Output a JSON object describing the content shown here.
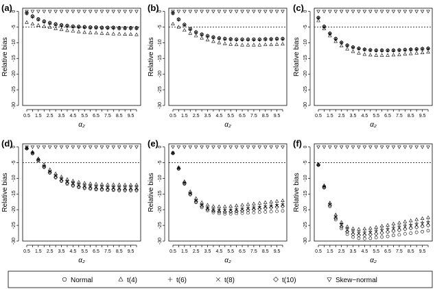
{
  "chart_data": {
    "type": "scatter",
    "ylabel": "Relative bias",
    "xlabel": "α₂",
    "x_ticks": [
      "0.5",
      "1.5",
      "2.5",
      "3.5",
      "4.5",
      "5.5",
      "6.5",
      "7.5",
      "8.5",
      "9.5"
    ],
    "y_ticks": [
      "0",
      "-5",
      "-10",
      "-15",
      "-20",
      "-25",
      "-30"
    ],
    "ylim": [
      -30,
      1
    ],
    "xlim": [
      0.5,
      10
    ],
    "reference_line": -5,
    "grid": false,
    "legend": {
      "placement": "bottom",
      "items": [
        {
          "symbol": "circle",
          "label": "Normal"
        },
        {
          "symbol": "triangle-up",
          "label": "t(4)"
        },
        {
          "symbol": "plus",
          "label": "t(6)"
        },
        {
          "symbol": "cross",
          "label": "t(8)"
        },
        {
          "symbol": "diamond",
          "label": "t(10)"
        },
        {
          "symbol": "triangle-down",
          "label": "Skew−normal"
        }
      ]
    },
    "x": [
      0.5,
      1,
      1.5,
      2,
      2.5,
      3,
      3.5,
      4,
      4.5,
      5,
      5.5,
      6,
      6.5,
      7,
      7.5,
      8,
      8.5,
      9,
      9.5,
      10
    ],
    "panels": [
      {
        "tag": "(a)",
        "series": [
          {
            "symbol": "circle",
            "values": [
              -0.5,
              -1.5,
              -2.4,
              -3.1,
              -3.6,
              -4.0,
              -4.3,
              -4.5,
              -4.7,
              -4.8,
              -4.9,
              -5.0,
              -5.0,
              -5.1,
              -5.1,
              -5.1,
              -5.2,
              -5.2,
              -5.2,
              -5.2
            ]
          },
          {
            "symbol": "triangle-up",
            "values": [
              -3.5,
              -4.0,
              -4.4,
              -4.8,
              -5.1,
              -5.5,
              -5.8,
              -6.1,
              -6.3,
              -6.5,
              -6.7,
              -6.8,
              -6.9,
              -7.0,
              -7.1,
              -7.2,
              -7.2,
              -7.3,
              -7.3,
              -7.4
            ]
          },
          {
            "symbol": "plus",
            "values": [
              -0.8,
              -1.9,
              -2.8,
              -3.5,
              -4.0,
              -4.4,
              -4.7,
              -4.9,
              -5.1,
              -5.2,
              -5.3,
              -5.4,
              -5.4,
              -5.5,
              -5.5,
              -5.5,
              -5.6,
              -5.6,
              -5.6,
              -5.6
            ]
          },
          {
            "symbol": "cross",
            "values": [
              -0.6,
              -1.7,
              -2.6,
              -3.3,
              -3.8,
              -4.2,
              -4.5,
              -4.7,
              -4.9,
              -5.0,
              -5.1,
              -5.2,
              -5.2,
              -5.3,
              -5.3,
              -5.3,
              -5.4,
              -5.4,
              -5.4,
              -5.4
            ]
          },
          {
            "symbol": "diamond",
            "values": [
              -0.5,
              -1.6,
              -2.5,
              -3.2,
              -3.7,
              -4.1,
              -4.4,
              -4.6,
              -4.8,
              -4.9,
              -5.0,
              -5.1,
              -5.1,
              -5.2,
              -5.2,
              -5.2,
              -5.3,
              -5.3,
              -5.3,
              -5.3
            ]
          },
          {
            "symbol": "triangle-down",
            "values": [
              0,
              0,
              0,
              0,
              0,
              0,
              0,
              0,
              0,
              0,
              0,
              0,
              0,
              0,
              0,
              0,
              0,
              0,
              0,
              0
            ]
          }
        ]
      },
      {
        "tag": "(b)",
        "series": [
          {
            "symbol": "circle",
            "values": [
              -0.5,
              -2.5,
              -4.2,
              -5.6,
              -6.6,
              -7.3,
              -7.8,
              -8.2,
              -8.5,
              -8.7,
              -8.8,
              -8.9,
              -8.9,
              -8.9,
              -8.9,
              -8.9,
              -8.8,
              -8.8,
              -8.7,
              -8.7
            ]
          },
          {
            "symbol": "triangle-up",
            "values": [
              -4.0,
              -5.0,
              -6.0,
              -7.0,
              -7.8,
              -8.5,
              -9.1,
              -9.6,
              -10.0,
              -10.3,
              -10.5,
              -10.6,
              -10.7,
              -10.7,
              -10.7,
              -10.7,
              -10.6,
              -10.6,
              -10.5,
              -10.4
            ]
          },
          {
            "symbol": "plus",
            "values": [
              -0.8,
              -2.8,
              -4.5,
              -5.9,
              -6.9,
              -7.6,
              -8.1,
              -8.5,
              -8.8,
              -9.0,
              -9.1,
              -9.2,
              -9.2,
              -9.2,
              -9.2,
              -9.2,
              -9.1,
              -9.1,
              -9.0,
              -9.0
            ]
          },
          {
            "symbol": "cross",
            "values": [
              -0.6,
              -2.6,
              -4.3,
              -5.7,
              -6.7,
              -7.4,
              -7.9,
              -8.3,
              -8.6,
              -8.8,
              -8.9,
              -9.0,
              -9.0,
              -9.0,
              -9.0,
              -9.0,
              -8.9,
              -8.9,
              -8.8,
              -8.8
            ]
          },
          {
            "symbol": "diamond",
            "values": [
              -0.5,
              -2.5,
              -4.2,
              -5.6,
              -6.6,
              -7.3,
              -7.8,
              -8.2,
              -8.5,
              -8.7,
              -8.8,
              -8.9,
              -8.9,
              -8.9,
              -8.9,
              -8.9,
              -8.8,
              -8.8,
              -8.7,
              -8.7
            ]
          },
          {
            "symbol": "triangle-down",
            "values": [
              0,
              0,
              0,
              0,
              0,
              0,
              0,
              0,
              0,
              0,
              0,
              0,
              0,
              0,
              0,
              0,
              0,
              0,
              0,
              0
            ]
          }
        ]
      },
      {
        "tag": "(c)",
        "series": [
          {
            "symbol": "circle",
            "values": [
              -2.0,
              -4.8,
              -7.0,
              -8.7,
              -9.9,
              -10.8,
              -11.4,
              -11.8,
              -12.1,
              -12.3,
              -12.4,
              -12.4,
              -12.4,
              -12.4,
              -12.3,
              -12.2,
              -12.1,
              -12.0,
              -11.9,
              -11.8
            ]
          },
          {
            "symbol": "triangle-up",
            "values": [
              -3.0,
              -5.5,
              -7.8,
              -9.6,
              -11.0,
              -12.0,
              -12.8,
              -13.3,
              -13.7,
              -13.9,
              -14.0,
              -14.0,
              -14.0,
              -13.9,
              -13.8,
              -13.6,
              -13.5,
              -13.3,
              -13.2,
              -13.0
            ]
          },
          {
            "symbol": "plus",
            "values": [
              -2.2,
              -5.0,
              -7.2,
              -8.9,
              -10.1,
              -11.0,
              -11.6,
              -12.0,
              -12.3,
              -12.5,
              -12.6,
              -12.6,
              -12.6,
              -12.6,
              -12.5,
              -12.4,
              -12.3,
              -12.2,
              -12.1,
              -12.0
            ]
          },
          {
            "symbol": "cross",
            "values": [
              -2.1,
              -4.9,
              -7.1,
              -8.8,
              -10.0,
              -10.9,
              -11.5,
              -11.9,
              -12.2,
              -12.4,
              -12.5,
              -12.5,
              -12.5,
              -12.5,
              -12.4,
              -12.3,
              -12.2,
              -12.1,
              -12.0,
              -11.9
            ]
          },
          {
            "symbol": "diamond",
            "values": [
              -2.0,
              -4.8,
              -7.0,
              -8.7,
              -9.9,
              -10.8,
              -11.4,
              -11.8,
              -12.1,
              -12.3,
              -12.4,
              -12.4,
              -12.4,
              -12.4,
              -12.3,
              -12.2,
              -12.1,
              -12.0,
              -11.9,
              -11.8
            ]
          },
          {
            "symbol": "triangle-down",
            "values": [
              0,
              0,
              0,
              0,
              0,
              0,
              0,
              0,
              0,
              0,
              0,
              0,
              0,
              0,
              0,
              0,
              0,
              0,
              0,
              0
            ]
          }
        ]
      },
      {
        "tag": "(d)",
        "series": [
          {
            "symbol": "circle",
            "values": [
              -0.5,
              -2.1,
              -4.4,
              -6.5,
              -8.3,
              -9.8,
              -10.9,
              -11.8,
              -12.4,
              -12.9,
              -13.2,
              -13.4,
              -13.6,
              -13.7,
              -13.8,
              -13.8,
              -13.9,
              -13.9,
              -13.9,
              -13.9
            ]
          },
          {
            "symbol": "triangle-up",
            "values": [
              -0.3,
              -1.6,
              -3.7,
              -5.6,
              -7.2,
              -8.5,
              -9.5,
              -10.3,
              -10.8,
              -11.2,
              -11.5,
              -11.7,
              -11.8,
              -11.9,
              -12.0,
              -12.0,
              -12.0,
              -12.1,
              -12.1,
              -12.1
            ]
          },
          {
            "symbol": "plus",
            "values": [
              -0.4,
              -1.8,
              -4.0,
              -6.0,
              -7.7,
              -9.0,
              -10.0,
              -10.8,
              -11.3,
              -11.8,
              -12.1,
              -12.3,
              -12.4,
              -12.5,
              -12.6,
              -12.6,
              -12.6,
              -12.7,
              -12.7,
              -12.7
            ]
          },
          {
            "symbol": "cross",
            "values": [
              -0.4,
              -1.9,
              -4.1,
              -6.2,
              -7.9,
              -9.3,
              -10.4,
              -11.2,
              -11.8,
              -12.3,
              -12.6,
              -12.8,
              -12.9,
              -13.0,
              -13.1,
              -13.1,
              -13.2,
              -13.2,
              -13.2,
              -13.2
            ]
          },
          {
            "symbol": "diamond",
            "values": [
              -0.5,
              -2.0,
              -4.2,
              -6.3,
              -8.1,
              -9.6,
              -10.7,
              -11.5,
              -12.1,
              -12.6,
              -12.9,
              -13.1,
              -13.3,
              -13.4,
              -13.5,
              -13.5,
              -13.6,
              -13.6,
              -13.6,
              -13.6
            ]
          },
          {
            "symbol": "triangle-down",
            "values": [
              0,
              0,
              0,
              0,
              0,
              0,
              0,
              0,
              0,
              0,
              0,
              0,
              0,
              0,
              0,
              0,
              0,
              0,
              0,
              0
            ]
          }
        ]
      },
      {
        "tag": "(e)",
        "series": [
          {
            "symbol": "circle",
            "values": [
              -2.0,
              -7.0,
              -11.8,
              -15.2,
              -17.7,
              -19.3,
              -20.3,
              -20.9,
              -21.2,
              -21.3,
              -21.3,
              -21.2,
              -21.1,
              -21.0,
              -20.9,
              -20.8,
              -20.7,
              -20.6,
              -20.5,
              -20.4
            ]
          },
          {
            "symbol": "triangle-up",
            "values": [
              -1.8,
              -6.5,
              -11.0,
              -14.2,
              -16.4,
              -17.7,
              -18.5,
              -18.9,
              -19.0,
              -19.0,
              -18.9,
              -18.7,
              -18.5,
              -18.3,
              -18.1,
              -17.9,
              -17.7,
              -17.5,
              -17.3,
              -17.1
            ]
          },
          {
            "symbol": "plus",
            "values": [
              -1.9,
              -6.7,
              -11.3,
              -14.6,
              -16.9,
              -18.3,
              -19.2,
              -19.7,
              -19.9,
              -19.9,
              -19.8,
              -19.7,
              -19.5,
              -19.3,
              -19.1,
              -18.9,
              -18.7,
              -18.5,
              -18.3,
              -18.1
            ]
          },
          {
            "symbol": "cross",
            "values": [
              -1.9,
              -6.8,
              -11.5,
              -14.8,
              -17.2,
              -18.7,
              -19.6,
              -20.1,
              -20.3,
              -20.3,
              -20.2,
              -20.1,
              -19.9,
              -19.7,
              -19.5,
              -19.3,
              -19.1,
              -18.9,
              -18.7,
              -18.5
            ]
          },
          {
            "symbol": "diamond",
            "values": [
              -2.0,
              -6.9,
              -11.6,
              -15.0,
              -17.4,
              -18.9,
              -19.9,
              -20.4,
              -20.6,
              -20.7,
              -20.6,
              -20.5,
              -20.3,
              -20.1,
              -19.9,
              -19.7,
              -19.5,
              -19.3,
              -19.1,
              -18.9
            ]
          },
          {
            "symbol": "triangle-down",
            "values": [
              0,
              0,
              0,
              0,
              0,
              0,
              0,
              0,
              0,
              0,
              0,
              0,
              0,
              0,
              0,
              0,
              0,
              0,
              0,
              0
            ]
          }
        ]
      },
      {
        "tag": "(f)",
        "series": [
          {
            "symbol": "circle",
            "values": [
              -5.8,
              -13.0,
              -19.0,
              -23.2,
              -26.0,
              -27.8,
              -28.7,
              -29.1,
              -29.2,
              -29.1,
              -28.9,
              -28.7,
              -28.5,
              -28.2,
              -28.0,
              -27.7,
              -27.5,
              -27.2,
              -27.0,
              -26.7
            ]
          },
          {
            "symbol": "triangle-up",
            "values": [
              -5.5,
              -12.3,
              -17.8,
              -21.6,
              -24.0,
              -25.4,
              -26.0,
              -26.2,
              -26.1,
              -25.9,
              -25.6,
              -25.2,
              -24.9,
              -24.5,
              -24.2,
              -23.8,
              -23.5,
              -23.1,
              -22.8,
              -22.5
            ]
          },
          {
            "symbol": "plus",
            "values": [
              -5.6,
              -12.5,
              -18.1,
              -22.0,
              -24.5,
              -26.0,
              -26.7,
              -27.0,
              -27.0,
              -26.8,
              -26.5,
              -26.2,
              -25.9,
              -25.5,
              -25.2,
              -24.9,
              -24.6,
              -24.3,
              -24.0,
              -23.7
            ]
          },
          {
            "symbol": "cross",
            "values": [
              -5.7,
              -12.7,
              -18.4,
              -22.4,
              -25.0,
              -26.6,
              -27.3,
              -27.6,
              -27.6,
              -27.4,
              -27.1,
              -26.8,
              -26.5,
              -26.1,
              -25.8,
              -25.5,
              -25.2,
              -24.9,
              -24.6,
              -24.3
            ]
          },
          {
            "symbol": "diamond",
            "values": [
              -5.7,
              -12.8,
              -18.6,
              -22.7,
              -25.4,
              -27.0,
              -27.8,
              -28.1,
              -28.1,
              -27.9,
              -27.7,
              -27.4,
              -27.1,
              -26.8,
              -26.5,
              -26.2,
              -25.9,
              -25.6,
              -25.3,
              -25.0
            ]
          },
          {
            "symbol": "triangle-down",
            "values": [
              0,
              0,
              0,
              0,
              0,
              0,
              0,
              0,
              0,
              0,
              0,
              0,
              0,
              0,
              0,
              0,
              0,
              0,
              0,
              0
            ]
          }
        ]
      }
    ]
  }
}
